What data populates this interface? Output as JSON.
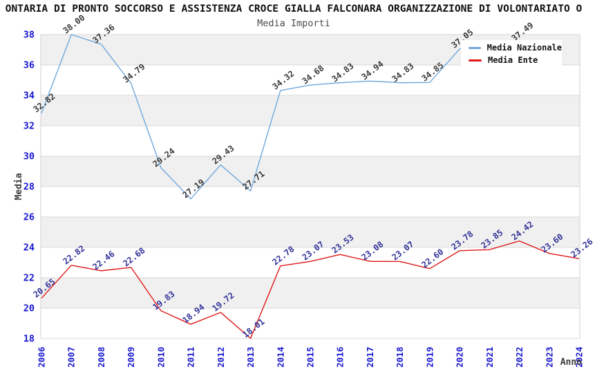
{
  "header": {
    "title_visible": "ONTARIA DI PRONTO SOCCORSO E ASSISTENZA CROCE GIALLA FALCONARA ORGANIZZAZIONE DI VOLONTARIATO O",
    "subtitle": "Media Importi"
  },
  "chart_data": {
    "type": "line",
    "title": "Media Importi",
    "xlabel": "Anno",
    "ylabel": "Media",
    "xlim": [
      2006,
      2024
    ],
    "ylim": [
      18,
      38
    ],
    "x_ticks": [
      2006,
      2007,
      2008,
      2009,
      2010,
      2011,
      2012,
      2013,
      2014,
      2015,
      2016,
      2017,
      2018,
      2019,
      2020,
      2021,
      2022,
      2023,
      2024
    ],
    "y_ticks": [
      18,
      20,
      22,
      24,
      26,
      28,
      30,
      32,
      34,
      36,
      38
    ],
    "grid": "horizontal",
    "legend_position": "top-right",
    "colors": {
      "band_fill": "#f0f0f0",
      "grid_line": "#d9d9d9",
      "plot_border": "#cfcfcf",
      "tick_label": "#1717cf",
      "axis_title": "#3a3a3a",
      "background": "#ffffff"
    },
    "shade_bands": [
      [
        20,
        22
      ],
      [
        24,
        26
      ],
      [
        28,
        30
      ],
      [
        32,
        34
      ],
      [
        36,
        38
      ]
    ],
    "series": [
      {
        "name": "Media Nazionale",
        "color": "#6fa8dc",
        "label_color": "#3a3a3a",
        "x": [
          2006,
          2007,
          2008,
          2009,
          2010,
          2011,
          2012,
          2013,
          2014,
          2015,
          2016,
          2017,
          2018,
          2019,
          2020,
          2021,
          2022
        ],
        "values": [
          32.82,
          38.0,
          37.36,
          34.79,
          29.24,
          27.19,
          29.43,
          27.71,
          34.32,
          34.68,
          34.83,
          34.94,
          34.83,
          34.85,
          37.05,
          null,
          37.49
        ]
      },
      {
        "name": "Media Ente",
        "color": "#e01717",
        "label_color": "#333399",
        "x": [
          2006,
          2007,
          2008,
          2009,
          2010,
          2011,
          2012,
          2013,
          2014,
          2015,
          2016,
          2017,
          2018,
          2019,
          2020,
          2021,
          2022,
          2023,
          2024
        ],
        "values": [
          20.65,
          22.82,
          22.46,
          22.68,
          19.83,
          18.94,
          19.72,
          18.01,
          22.78,
          23.07,
          23.53,
          23.08,
          23.07,
          22.6,
          23.78,
          23.85,
          24.42,
          23.6,
          23.26
        ]
      }
    ]
  }
}
